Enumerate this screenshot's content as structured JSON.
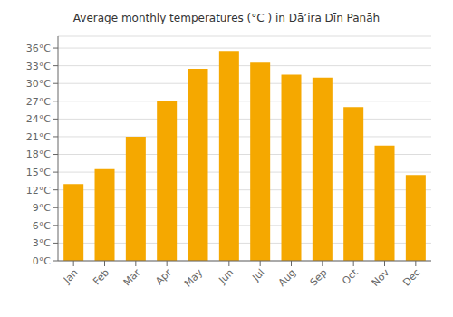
{
  "chart_data": {
    "type": "bar",
    "title": "Average monthly temperatures (°C ) in Dāʼira Dīn Panāh",
    "categories": [
      "Jan",
      "Feb",
      "Mar",
      "Apr",
      "May",
      "Jun",
      "Jul",
      "Aug",
      "Sep",
      "Oct",
      "Nov",
      "Dec"
    ],
    "values": [
      13,
      15.5,
      21,
      27,
      32.5,
      35.5,
      33.5,
      31.5,
      31,
      26,
      19.5,
      14.5
    ],
    "color": "#F5A800",
    "ylim": [
      0,
      38
    ],
    "yticks": [
      {
        "value": 0,
        "label": "0°C"
      },
      {
        "value": 3,
        "label": "3°C"
      },
      {
        "value": 6,
        "label": "6°C"
      },
      {
        "value": 9,
        "label": "9°C"
      },
      {
        "value": 12,
        "label": "12°C"
      },
      {
        "value": 15,
        "label": "15°C"
      },
      {
        "value": 18,
        "label": "18°C"
      },
      {
        "value": 21,
        "label": "21°C"
      },
      {
        "value": 24,
        "label": "24°C"
      },
      {
        "value": 27,
        "label": "27°C"
      },
      {
        "value": 30,
        "label": "30°C"
      },
      {
        "value": 33,
        "label": "33°C"
      },
      {
        "value": 36,
        "label": "36°C"
      }
    ],
    "grid": true
  }
}
